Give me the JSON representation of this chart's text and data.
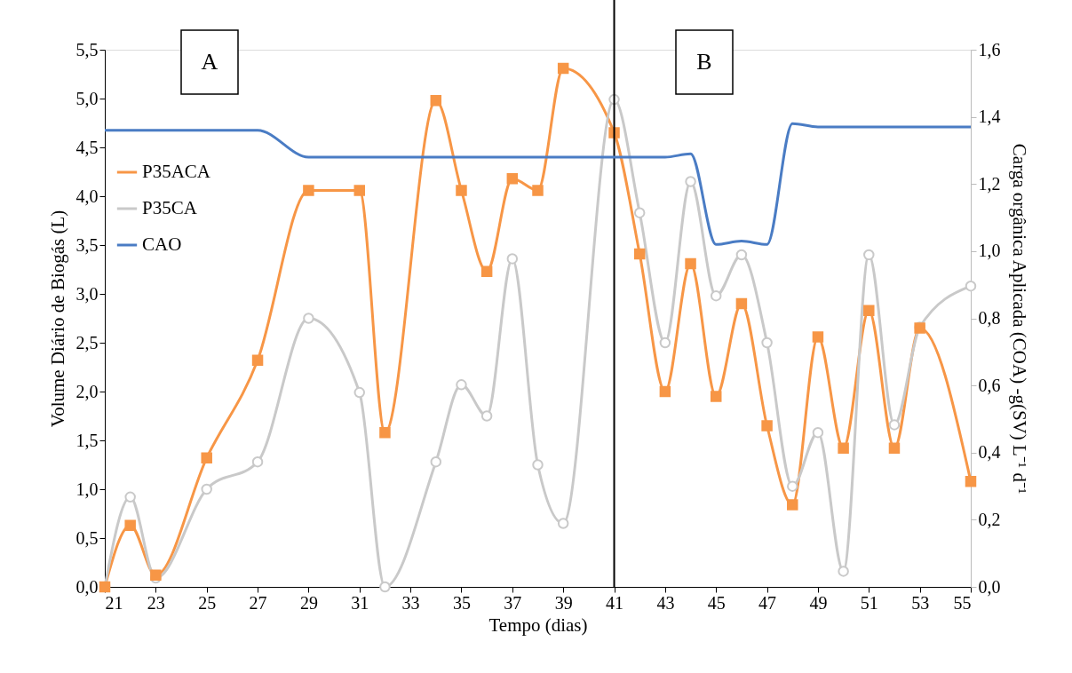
{
  "chart_data": {
    "type": "line",
    "xlabel": "Tempo (dias)",
    "ylabel": "Volume  Diário de Biogás (L)",
    "y2label": "Carga orgânica Aplicada (COA) -g(SV) L⁻¹ d⁻¹",
    "x": [
      21,
      22,
      23,
      25,
      27,
      29,
      31,
      32,
      34,
      35,
      36,
      37,
      38,
      39,
      41,
      42,
      43,
      44,
      45,
      46,
      47,
      48,
      49,
      50,
      51,
      52,
      53,
      55
    ],
    "series": [
      {
        "name": "P35ACA",
        "color": "#f79646",
        "marker": "square",
        "values": [
          0,
          0.63,
          0.12,
          1.32,
          2.32,
          4.06,
          4.06,
          1.58,
          4.98,
          4.06,
          3.23,
          4.18,
          4.06,
          5.31,
          4.65,
          3.41,
          2.0,
          3.31,
          1.95,
          2.9,
          1.65,
          0.84,
          2.56,
          1.42,
          2.83,
          1.42,
          2.65,
          1.08
        ]
      },
      {
        "name": "P35CA",
        "color": "#c9c9c9",
        "marker": "circle",
        "values": [
          0,
          0.92,
          0.09,
          1.0,
          1.28,
          2.75,
          1.99,
          0,
          1.28,
          2.07,
          1.75,
          3.36,
          1.25,
          0.65,
          4.99,
          3.83,
          2.5,
          4.15,
          2.98,
          3.4,
          2.5,
          1.03,
          1.58,
          0.16,
          3.4,
          1.66,
          2.66,
          3.08
        ]
      },
      {
        "name": "CAO",
        "color": "#4a7cc4",
        "marker": "none",
        "axis": "y2",
        "values": [
          1.36,
          1.36,
          1.36,
          1.36,
          1.36,
          1.28,
          1.28,
          1.28,
          1.28,
          1.28,
          1.28,
          1.28,
          1.28,
          1.28,
          1.28,
          1.28,
          1.28,
          1.29,
          1.02,
          1.03,
          1.02,
          1.38,
          1.37,
          1.37,
          1.37,
          1.37,
          1.37,
          1.37
        ]
      }
    ],
    "xlim": [
      21,
      55
    ],
    "xticks": [
      21,
      23,
      25,
      27,
      29,
      31,
      33,
      35,
      37,
      39,
      41,
      43,
      45,
      47,
      49,
      51,
      53,
      55
    ],
    "ylim": [
      0,
      5.5
    ],
    "yticks": [
      {
        "value": 0,
        "label": "0,0"
      },
      {
        "value": 0.5,
        "label": "0,5"
      },
      {
        "value": 1,
        "label": "1,0"
      },
      {
        "value": 1.5,
        "label": "1,5"
      },
      {
        "value": 2,
        "label": "2,0"
      },
      {
        "value": 2.5,
        "label": "2,5"
      },
      {
        "value": 3,
        "label": "3,0"
      },
      {
        "value": 3.5,
        "label": "3,5"
      },
      {
        "value": 4,
        "label": "4,0"
      },
      {
        "value": 4.5,
        "label": "4,5"
      },
      {
        "value": 5,
        "label": "5,0"
      },
      {
        "value": 5.5,
        "label": "5,5"
      }
    ],
    "y2lim": [
      0,
      1.6
    ],
    "y2ticks": [
      {
        "value": 0,
        "label": "0,0"
      },
      {
        "value": 0.2,
        "label": "0,2"
      },
      {
        "value": 0.4,
        "label": "0,4"
      },
      {
        "value": 0.6,
        "label": "0,6"
      },
      {
        "value": 0.8,
        "label": "0,8"
      },
      {
        "value": 1,
        "label": "1,0"
      },
      {
        "value": 1.2,
        "label": "1,2"
      },
      {
        "value": 1.4,
        "label": "1,4"
      },
      {
        "value": 1.6,
        "label": "1,6"
      }
    ],
    "ref_lines": [
      {
        "axis": "x",
        "value": 41,
        "color": "#000000"
      }
    ],
    "annotations": [
      "A",
      "B"
    ],
    "grid": false,
    "legend": "left",
    "line_style": "solid"
  }
}
